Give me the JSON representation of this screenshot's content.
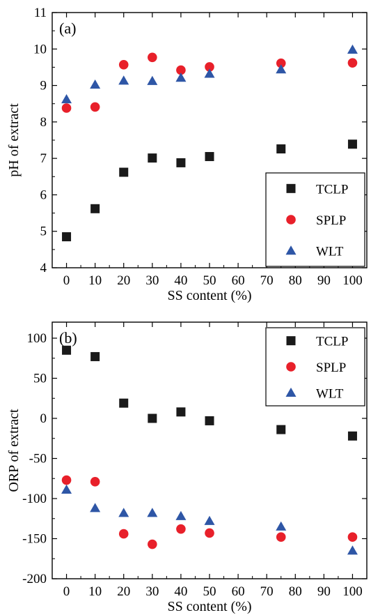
{
  "chart_data": [
    {
      "type": "scatter",
      "panel_label": "(a)",
      "xlabel": "SS content (%)",
      "ylabel": "pH of extract",
      "xlim": [
        -5,
        105
      ],
      "ylim": [
        4,
        11
      ],
      "xticks": [
        0,
        10,
        20,
        30,
        40,
        50,
        60,
        70,
        80,
        90,
        100
      ],
      "yticks": [
        4,
        5,
        6,
        7,
        8,
        9,
        10,
        11
      ],
      "legend_position": "lower-right",
      "x": [
        0,
        10,
        20,
        30,
        40,
        50,
        75,
        100
      ],
      "series": [
        {
          "name": "TCLP",
          "marker": "square",
          "color": "#1a1a1a",
          "values": [
            4.85,
            5.62,
            6.62,
            7.01,
            6.88,
            7.05,
            7.26,
            7.39
          ]
        },
        {
          "name": "SPLP",
          "marker": "circle",
          "color": "#e8202a",
          "values": [
            8.38,
            8.41,
            9.57,
            9.77,
            9.42,
            9.51,
            9.61,
            9.62
          ]
        },
        {
          "name": "WLT",
          "marker": "triangle",
          "color": "#2e56a6",
          "values": [
            8.62,
            9.02,
            9.13,
            9.12,
            9.21,
            9.32,
            9.44,
            9.98
          ]
        }
      ]
    },
    {
      "type": "scatter",
      "panel_label": "(b)",
      "xlabel": "SS content (%)",
      "ylabel": "ORP of extract",
      "xlim": [
        -5,
        105
      ],
      "ylim": [
        -200,
        120
      ],
      "xticks": [
        0,
        10,
        20,
        30,
        40,
        50,
        60,
        70,
        80,
        90,
        100
      ],
      "yticks": [
        -200,
        -150,
        -100,
        -50,
        0,
        50,
        100
      ],
      "legend_position": "top-right",
      "x": [
        0,
        10,
        20,
        30,
        40,
        50,
        75,
        100
      ],
      "series": [
        {
          "name": "TCLP",
          "marker": "square",
          "color": "#1a1a1a",
          "values": [
            85,
            77,
            19,
            0,
            8,
            -3,
            -14,
            -22
          ]
        },
        {
          "name": "SPLP",
          "marker": "circle",
          "color": "#e8202a",
          "values": [
            -77,
            -79,
            -144,
            -157,
            -138,
            -143,
            -148,
            -148
          ]
        },
        {
          "name": "WLT",
          "marker": "triangle",
          "color": "#2e56a6",
          "values": [
            -89,
            -112,
            -118,
            -118,
            -122,
            -128,
            -135,
            -165
          ]
        }
      ]
    }
  ]
}
